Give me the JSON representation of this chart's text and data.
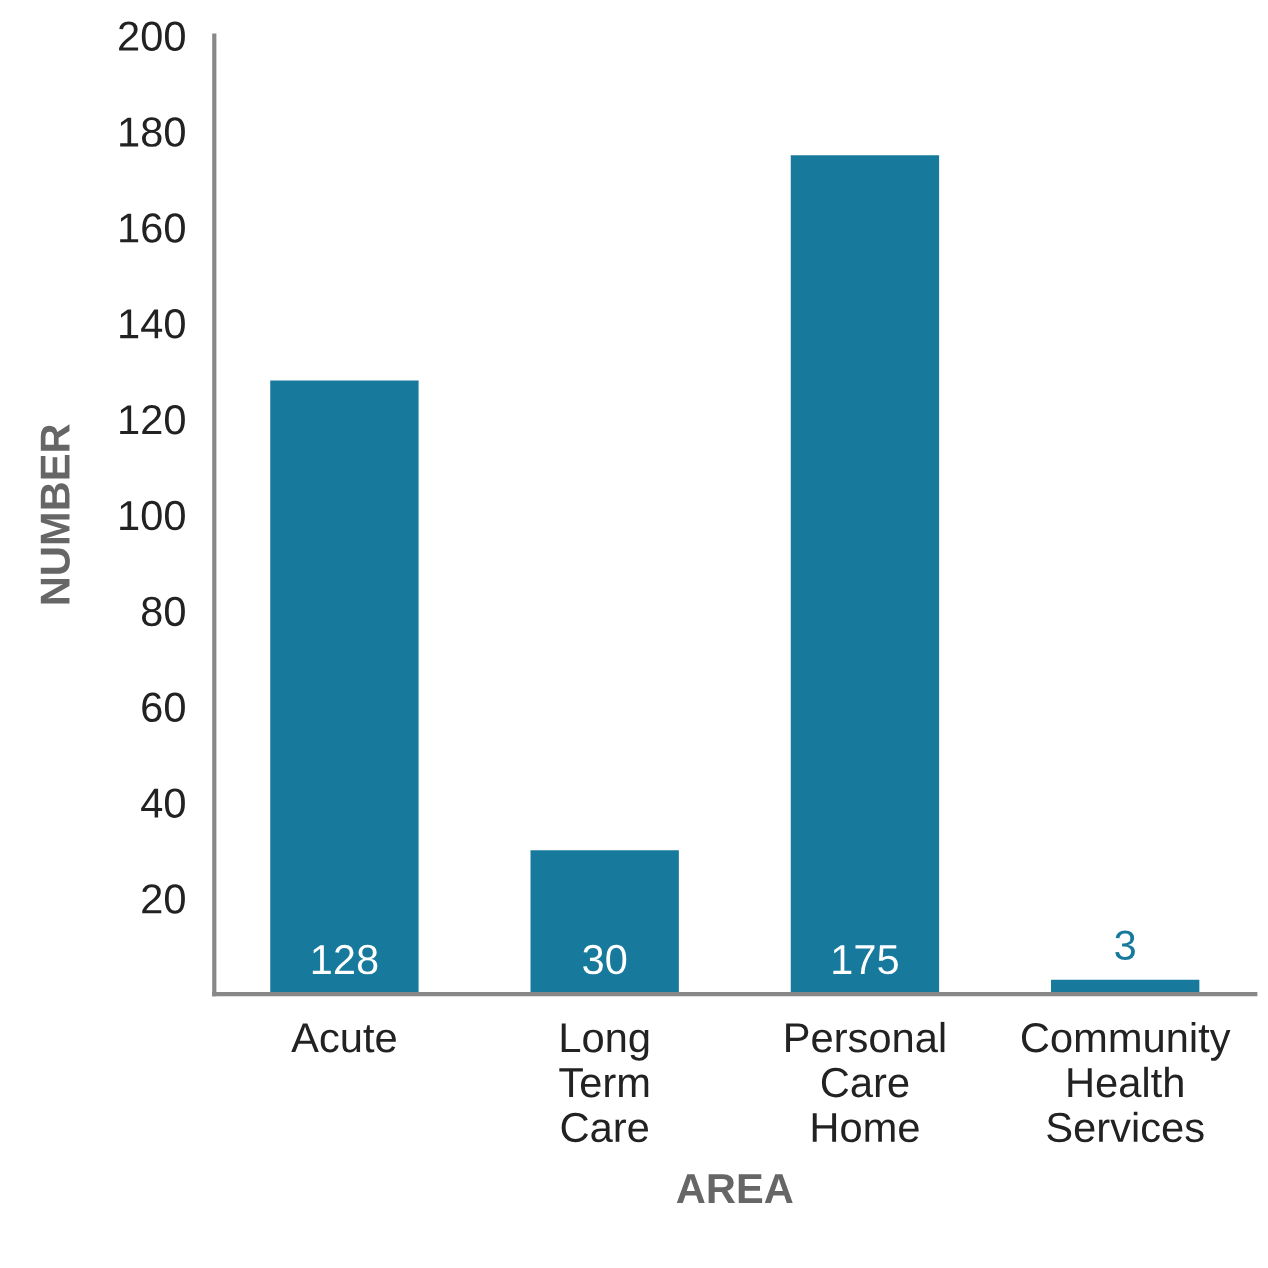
{
  "chart_data": {
    "type": "bar",
    "xlabel": "AREA",
    "ylabel": "NUMBER",
    "categories": [
      "Acute",
      "Long Term Care",
      "Personal Care Home",
      "Community Health Services"
    ],
    "values": [
      128,
      30,
      175,
      3
    ],
    "color": "#177a9c",
    "ylim": [
      0,
      200
    ],
    "yticks": [
      20,
      40,
      60,
      80,
      100,
      120,
      140,
      160,
      180,
      200
    ],
    "data_labels": true,
    "grid": false
  }
}
